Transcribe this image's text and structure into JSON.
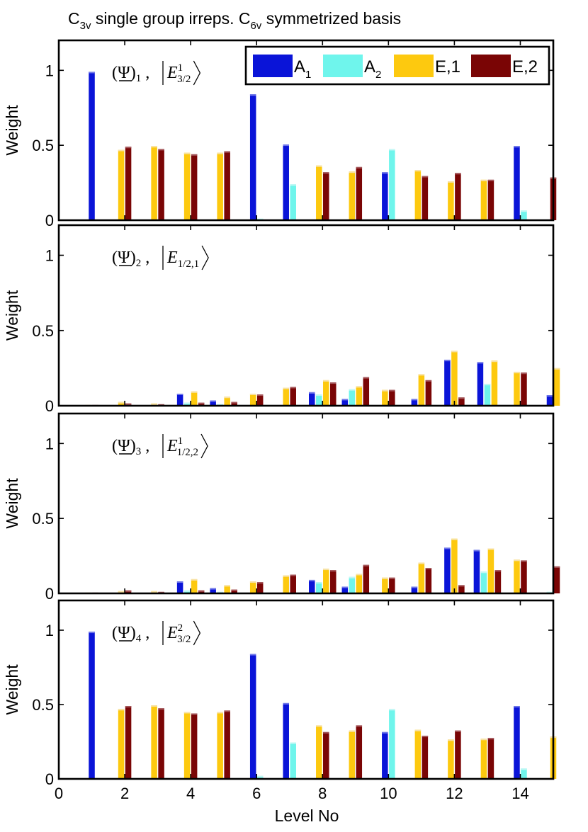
{
  "chart_data": {
    "type": "bar",
    "title": "C3v single group irreps. C6v symmetrized basis",
    "title_parts": {
      "pre": "C",
      "sub1": "3v",
      "mid": " single group irreps. C",
      "sub2": "6v",
      "post": " symmetrized basis"
    },
    "xlabel": "Level No",
    "xlim": [
      0,
      15
    ],
    "xticks": [
      0,
      2,
      4,
      6,
      8,
      10,
      12,
      14
    ],
    "ylim": [
      0,
      1.2
    ],
    "yticks": [
      0,
      0.5,
      1
    ],
    "ytick_labels": [
      "0",
      "0.5",
      "1"
    ],
    "legend_position": "top-right of first panel",
    "series_names": [
      "A1",
      "A2",
      "E,1",
      "E,2"
    ],
    "legend": [
      {
        "name": "A",
        "sub": "1",
        "color": "#0a14d8"
      },
      {
        "name": "A",
        "sub": "2",
        "color": "#6ff5ec"
      },
      {
        "name": "E,1",
        "sub": "",
        "color": "#fdc90f"
      },
      {
        "name": "E,2",
        "sub": "",
        "color": "#7a0505"
      }
    ],
    "colors": {
      "A1": "#0a14d8",
      "A2": "#6ff5ec",
      "E1": "#fdc90f",
      "E2": "#7a0505",
      "A1_cap": "#6f77e9",
      "A2_cap": "#c3f8f4",
      "E1_cap": "#f7e2a6",
      "E2_cap": "#a4565a"
    },
    "levels": [
      1,
      2,
      3,
      4,
      5,
      6,
      7,
      8,
      9,
      10,
      11,
      12,
      13,
      14,
      15
    ],
    "panels": [
      {
        "ylabel": "Weight",
        "annotation": {
          "psi": "(Ψ)",
          "idx": "1",
          "ket": "E",
          "sup": "1",
          "sub": "3/2"
        },
        "series": [
          {
            "name": "A1",
            "values": [
              0.99,
              0,
              0,
              0,
              0,
              0.84,
              0.505,
              0,
              0,
              0.32,
              0,
              0,
              0,
              0.495,
              0
            ]
          },
          {
            "name": "A2",
            "values": [
              0,
              0,
              0,
              0,
              0,
              0.01,
              0.24,
              0,
              0,
              0.475,
              0,
              0,
              0,
              0.065,
              0
            ]
          },
          {
            "name": "E,1",
            "values": [
              0,
              0.47,
              0.495,
              0.45,
              0.45,
              0,
              0,
              0.365,
              0.325,
              0,
              0.335,
              0.26,
              0.27,
              0,
              0
            ]
          },
          {
            "name": "E,2",
            "values": [
              0,
              0.49,
              0.475,
              0.44,
              0.46,
              0,
              0,
              0.32,
              0.355,
              0,
              0.295,
              0.315,
              0.27,
              0,
              0.285
            ]
          }
        ]
      },
      {
        "ylabel": "Weight",
        "annotation": {
          "psi": "(Ψ)",
          "idx": "2",
          "ket": "E",
          "sup": "",
          "sub": "1/2,1"
        },
        "series": [
          {
            "name": "A1",
            "values": [
              0,
              0,
              0,
              0.08,
              0.035,
              0,
              0,
              0.09,
              0.045,
              0,
              0.045,
              0.305,
              0.29,
              0,
              0.07
            ]
          },
          {
            "name": "A2",
            "values": [
              0,
              0,
              0,
              0.02,
              0.01,
              0,
              0,
              0.075,
              0.11,
              0,
              0,
              0,
              0.145,
              0,
              0
            ]
          },
          {
            "name": "E,1",
            "values": [
              0.005,
              0.025,
              0.015,
              0.095,
              0.06,
              0.08,
              0.12,
              0.17,
              0.13,
              0.105,
              0.21,
              0.365,
              0.3,
              0.225,
              0.25
            ]
          },
          {
            "name": "E,2",
            "values": [
              0.005,
              0.015,
              0.01,
              0.02,
              0.025,
              0.075,
              0.125,
              0.155,
              0.19,
              0.105,
              0.17,
              0.055,
              0,
              0.22,
              0
            ]
          }
        ]
      },
      {
        "ylabel": "Weight",
        "annotation": {
          "psi": "(Ψ)",
          "idx": "3",
          "ket": "E",
          "sup": "1",
          "sub": "1/2,2"
        },
        "series": [
          {
            "name": "A1",
            "values": [
              0,
              0,
              0,
              0.08,
              0.035,
              0,
              0,
              0.09,
              0.045,
              0,
              0.045,
              0.305,
              0.29,
              0,
              0
            ]
          },
          {
            "name": "A2",
            "values": [
              0,
              0,
              0,
              0.02,
              0.01,
              0,
              0,
              0.075,
              0.11,
              0,
              0,
              0,
              0.145,
              0,
              0.01
            ]
          },
          {
            "name": "E,1",
            "values": [
              0.005,
              0.015,
              0.015,
              0.095,
              0.055,
              0.08,
              0.12,
              0.165,
              0.13,
              0.105,
              0.205,
              0.365,
              0.3,
              0.225,
              0
            ]
          },
          {
            "name": "E,2",
            "values": [
              0.005,
              0.02,
              0.01,
              0.02,
              0.025,
              0.075,
              0.125,
              0.155,
              0.19,
              0.105,
              0.17,
              0.055,
              0.155,
              0.22,
              0.18
            ]
          }
        ]
      },
      {
        "ylabel": "Weight",
        "annotation": {
          "psi": "(Ψ)",
          "idx": "4",
          "ket": "E",
          "sup": "2",
          "sub": "3/2"
        },
        "series": [
          {
            "name": "A1",
            "values": [
              0.99,
              0,
              0,
              0,
              0,
              0.84,
              0.51,
              0,
              0,
              0.315,
              0,
              0,
              0,
              0.49,
              0
            ]
          },
          {
            "name": "A2",
            "values": [
              0,
              0,
              0,
              0,
              0,
              0.02,
              0.245,
              0,
              0,
              0.47,
              0,
              0,
              0,
              0.07,
              0
            ]
          },
          {
            "name": "E,1",
            "values": [
              0,
              0.47,
              0.495,
              0.45,
              0.45,
              0,
              0,
              0.36,
              0.325,
              0,
              0.33,
              0.265,
              0.27,
              0,
              0.285
            ]
          },
          {
            "name": "E,2",
            "values": [
              0,
              0.49,
              0.475,
              0.44,
              0.46,
              0,
              0,
              0.315,
              0.36,
              0,
              0.29,
              0.325,
              0.275,
              0,
              0
            ]
          }
        ]
      }
    ]
  }
}
